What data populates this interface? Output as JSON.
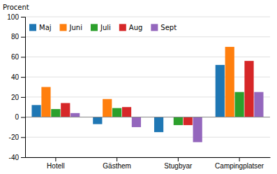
{
  "chart_data": {
    "type": "bar",
    "categories": [
      "Hotell",
      "Gästhem",
      "Stugbyar",
      "Campingplatser"
    ],
    "series": [
      {
        "name": "Maj",
        "values": [
          12,
          -7,
          -15,
          52
        ]
      },
      {
        "name": "Juni",
        "values": [
          30,
          18,
          0,
          70
        ]
      },
      {
        "name": "Juli",
        "values": [
          8,
          9,
          -8,
          25
        ]
      },
      {
        "name": "Aug",
        "values": [
          14,
          10,
          -8,
          56
        ]
      },
      {
        "name": "Sept",
        "values": [
          4,
          -10,
          -25,
          25
        ]
      }
    ],
    "ylabel": "Procent",
    "ylim": [
      -40,
      100
    ],
    "yticks": [
      -40,
      -20,
      0,
      20,
      40,
      60,
      80,
      100
    ],
    "grid": true,
    "legend": "upper left"
  }
}
